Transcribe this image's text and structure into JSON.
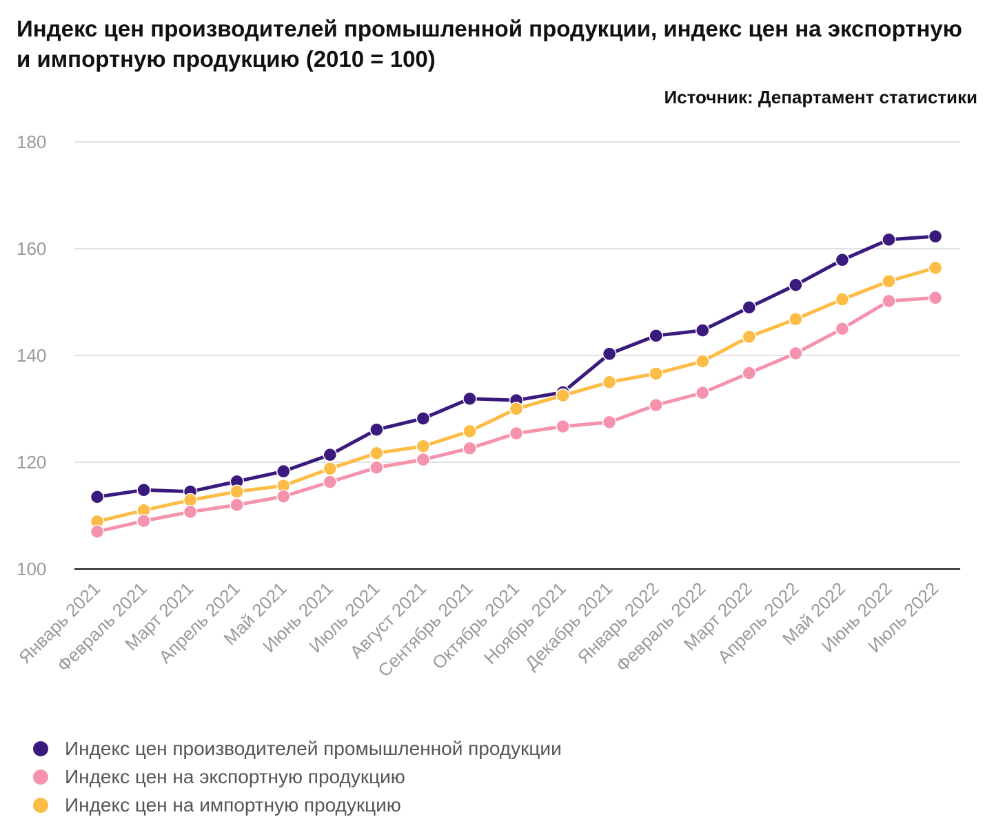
{
  "chart_data": {
    "type": "line",
    "title": "Индекс цен производителей промышленной продукции, индекс цен на экспортную и импортную продукцию (2010 = 100)",
    "source": "Источник: Департамент статистики",
    "categories": [
      "Январь 2021",
      "Февраль 2021",
      "Март 2021",
      "Апрель 2021",
      "Май 2021",
      "Июнь 2021",
      "Июль 2021",
      "Август 2021",
      "Сентябрь 2021",
      "Октябрь 2021",
      "Ноябрь 2021",
      "Декабрь 2021",
      "Январь 2022",
      "Февраль 2022",
      "Март 2022",
      "Апрель 2022",
      "Май 2022",
      "Июнь 2022",
      "Июль 2022"
    ],
    "ylim": [
      100,
      180
    ],
    "yticks": [
      100,
      120,
      140,
      160,
      180
    ],
    "grid": true,
    "legend_position": "bottom",
    "series": [
      {
        "name": "Индекс цен производителей промышленной продукции",
        "color": "#3b1a7e",
        "values": [
          113.5,
          114.8,
          114.5,
          116.4,
          118.3,
          121.4,
          126.1,
          128.2,
          131.9,
          131.6,
          133.1,
          140.3,
          143.7,
          144.7,
          149.0,
          153.2,
          157.9,
          161.7,
          162.3
        ]
      },
      {
        "name": "Индекс цен на экспортную продукцию",
        "color": "#f593ad",
        "values": [
          107.0,
          109.0,
          110.7,
          112.0,
          113.6,
          116.3,
          119.0,
          120.5,
          122.6,
          125.4,
          126.7,
          127.5,
          130.7,
          133.0,
          136.7,
          140.4,
          145.0,
          150.2,
          150.8
        ]
      },
      {
        "name": "Индекс цен на импортную продукцию",
        "color": "#fcbc45",
        "values": [
          108.9,
          111.0,
          112.9,
          114.5,
          115.6,
          118.8,
          121.7,
          123.0,
          125.8,
          130.0,
          132.5,
          135.0,
          136.6,
          138.9,
          143.5,
          146.8,
          150.5,
          153.9,
          156.4
        ]
      }
    ]
  }
}
